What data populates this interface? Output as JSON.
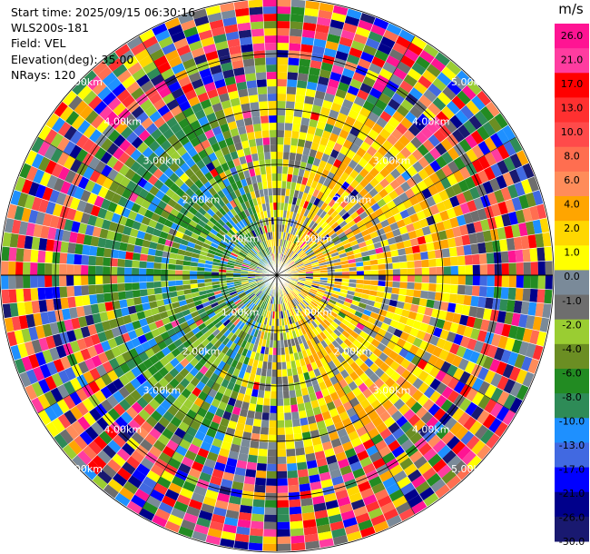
{
  "header": {
    "start_time": "Start time: 2025/09/15 06:30:16",
    "station": "WLS200s-181",
    "field": "Field: VEL",
    "elevation": "Elevation(deg): 35.00",
    "nrays": "NRays: 120"
  },
  "chart_data": {
    "type": "heatmap",
    "projection": "polar (PPI scan)",
    "n_rays": 120,
    "range_rings": [
      "1.00km",
      "2.00km",
      "3.00km",
      "4.00km",
      "5.00km"
    ],
    "colorbar": {
      "unit": "m/s",
      "ticks": [
        "26.0",
        "21.0",
        "17.0",
        "13.0",
        "10.0",
        "8.0",
        "6.0",
        "4.0",
        "2.0",
        "1.0",
        "0.0",
        "-1.0",
        "-2.0",
        "-4.0",
        "-6.0",
        "-8.0",
        "-10.0",
        "-13.0",
        "-17.0",
        "-21.0",
        "-26.0",
        "-30.0"
      ],
      "colors": [
        "#ff1493",
        "#ff3ca0",
        "#ff0000",
        "#ff3030",
        "#ff4a4a",
        "#ff6e50",
        "#ff8c5a",
        "#ffa500",
        "#ffd700",
        "#ffff00",
        "#7a8a99",
        "#6e6e6e",
        "#9acd32",
        "#6b8e23",
        "#228b22",
        "#2e8b57",
        "#1e90ff",
        "#4169e1",
        "#0000ff",
        "#00008b",
        "#191970"
      ]
    },
    "regions": {
      "near_east": "positive (1 to 8 m/s, yellow/orange)",
      "near_west": "negative (-2 to -10 m/s, green/blue)",
      "far_range": "noisy, all velocities"
    }
  }
}
